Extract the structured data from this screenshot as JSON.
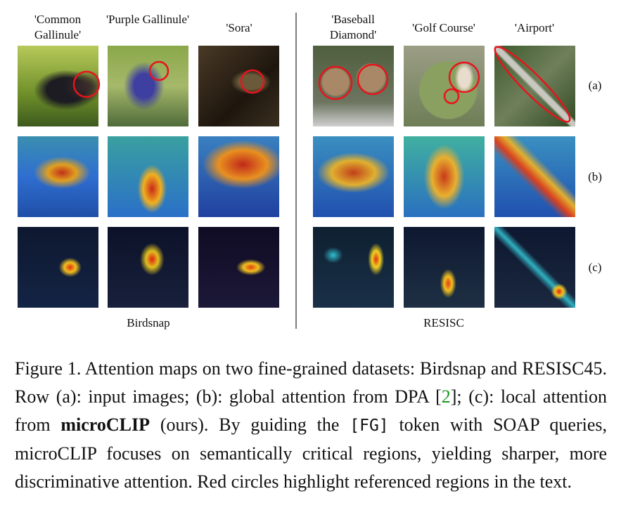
{
  "figure": {
    "columns": [
      "'Common Gallinule'",
      "'Purple Gallinule'",
      "'Sora'",
      "'Baseball Diamond'",
      "'Golf Course'",
      "'Airport'"
    ],
    "row_labels": [
      "(a)",
      "(b)",
      "(c)"
    ],
    "groups": [
      "Birdsnap",
      "RESISC"
    ],
    "caption": {
      "lead": "Figure 1. Attention maps on two fine-grained datasets: Birdsnap and RESISC45. Row (a): input images; (b): global attention from DPA ",
      "ref_open": "[",
      "ref": "2",
      "ref_close": "]",
      "mid": "; (c): local attention from ",
      "bold": "microCLIP",
      "after_bold": " (ours). By guiding the ",
      "token": "[FG]",
      "tail": " token with SOAP queries, microCLIP focuses on semantically critical regions, yielding sharper, more discriminative attention. Red circles highlight referenced regions in the text."
    }
  }
}
